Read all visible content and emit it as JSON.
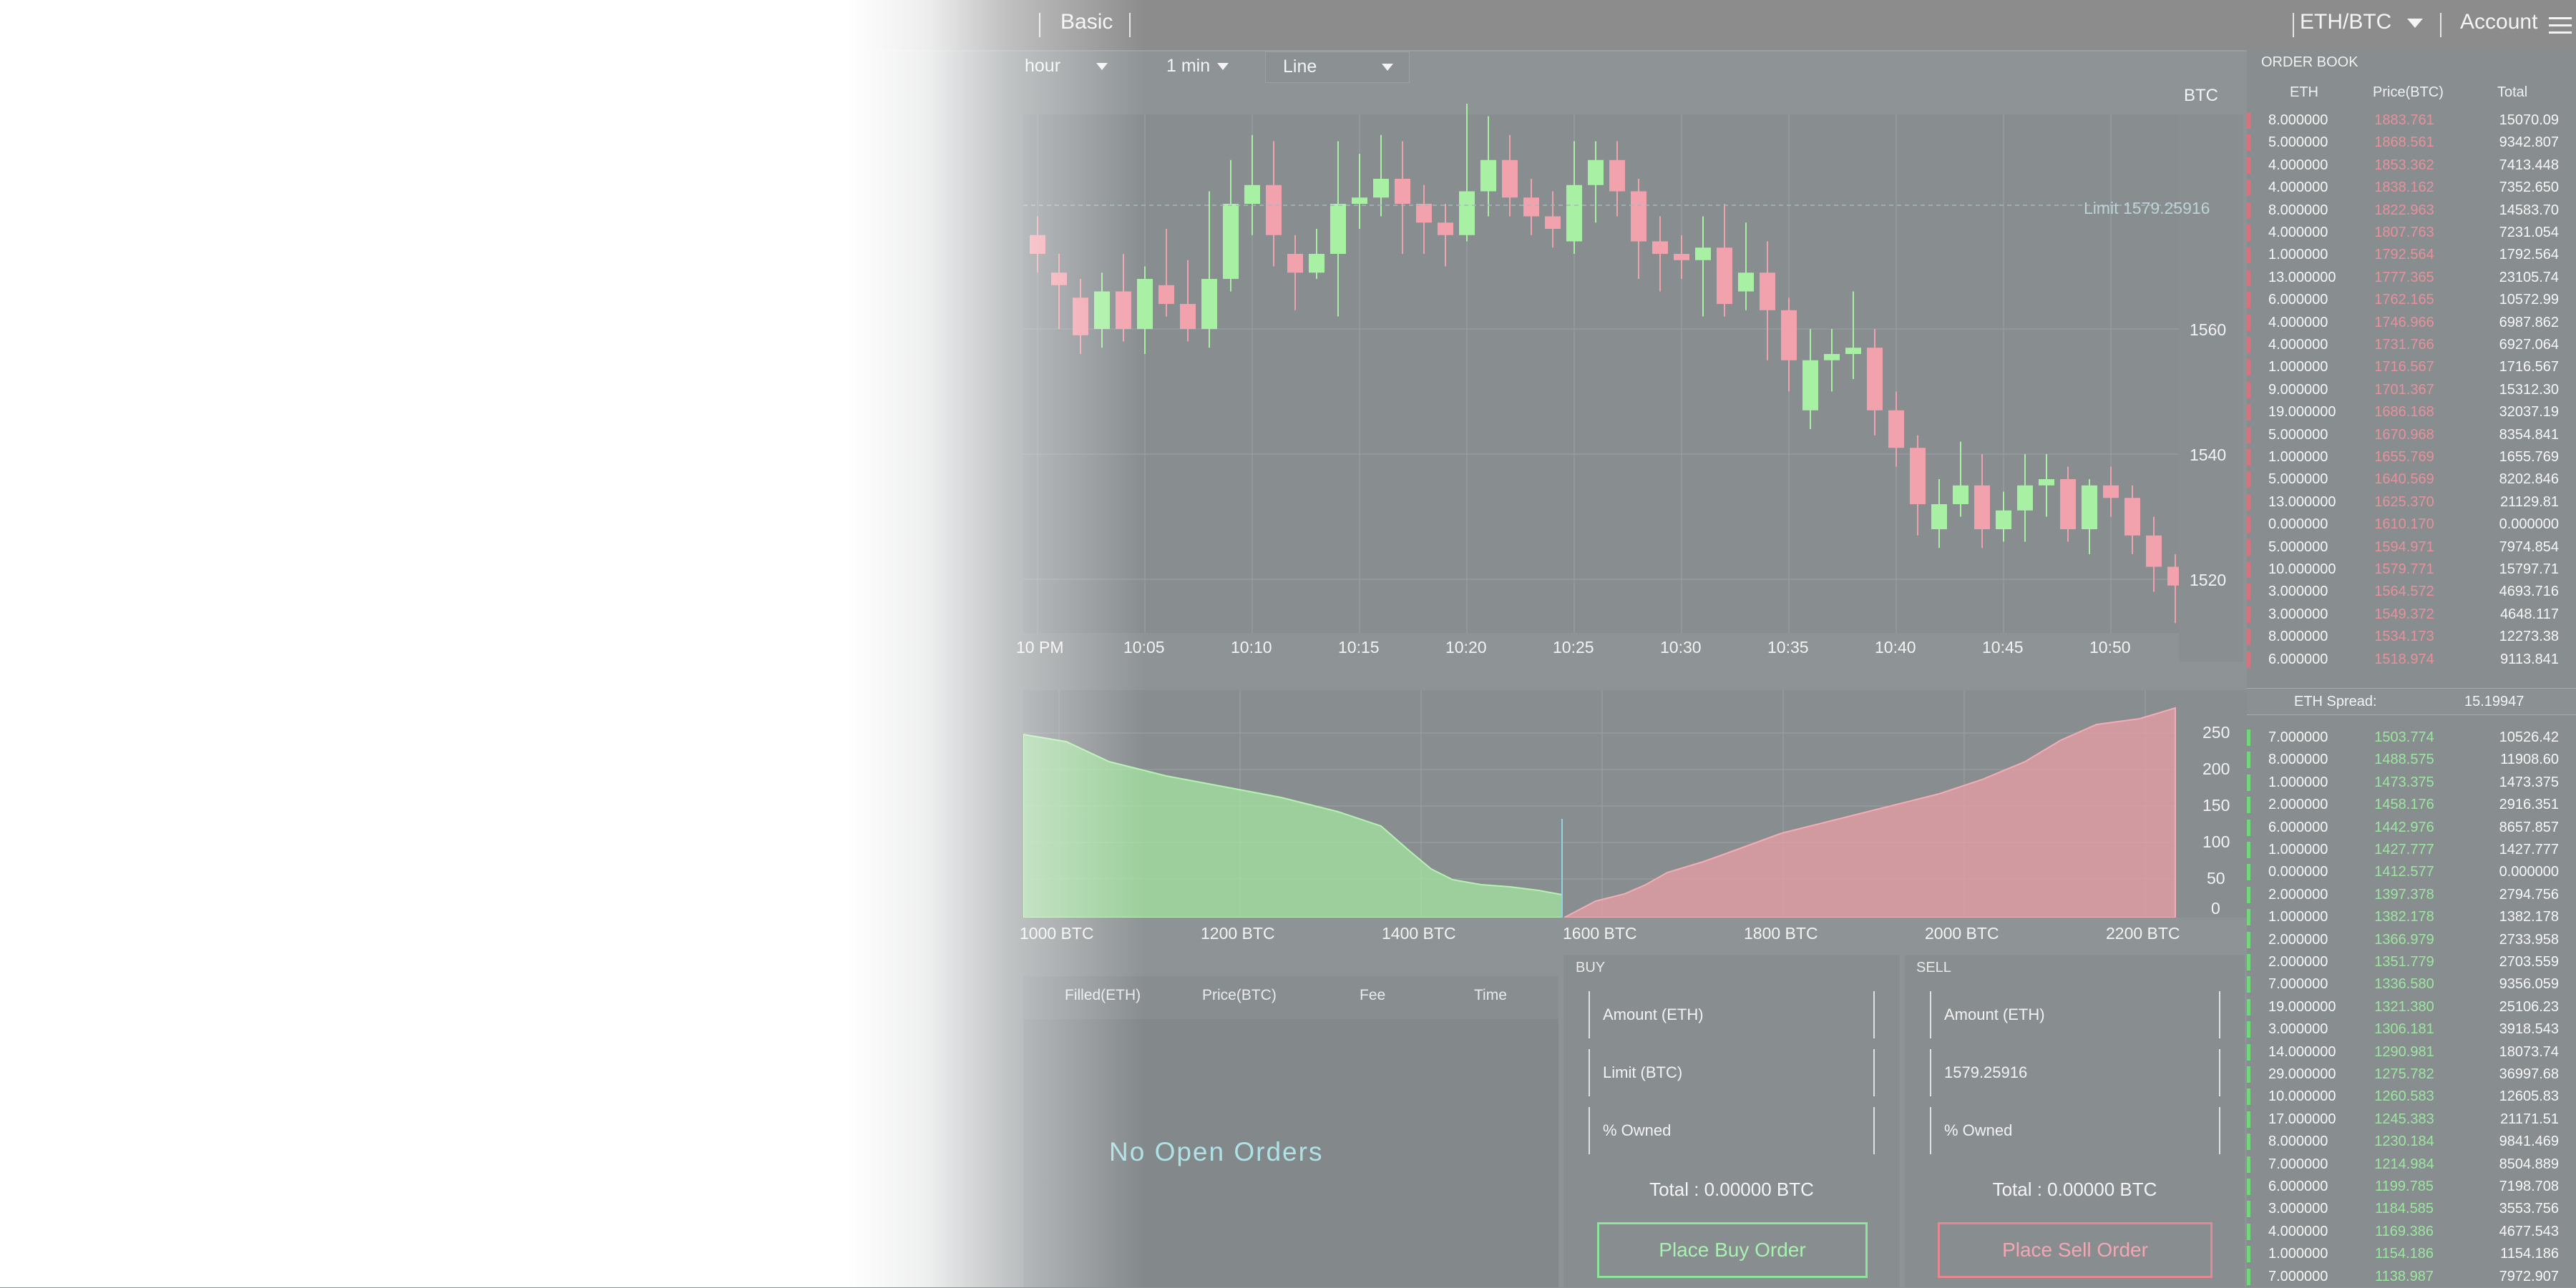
{
  "header": {
    "tab_basic": "Basic",
    "pair": "ETH/BTC",
    "account": "Account"
  },
  "controls": {
    "range": "hour",
    "interval": "1 min",
    "chart_type": "Line"
  },
  "price_chart": {
    "currency": "BTC",
    "limit_label": "Limit 1579.25916",
    "y_ticks": [
      "1560",
      "1540",
      "1520"
    ],
    "x_ticks": [
      "10 PM",
      "10:05",
      "10:10",
      "10:15",
      "10:20",
      "10:25",
      "10:30",
      "10:35",
      "10:40",
      "10:45",
      "10:50"
    ],
    "colors": {
      "up": "#a8f0a4",
      "down": "#f2a2ad"
    }
  },
  "depth_chart": {
    "y_ticks": [
      "250",
      "200",
      "150",
      "100",
      "50",
      "0"
    ],
    "x_ticks": [
      "1000 BTC",
      "1200 BTC",
      "1400 BTC",
      "1600 BTC",
      "1800 BTC",
      "2000 BTC",
      "2200 BTC"
    ],
    "colors": {
      "bid": "#a4e5a0",
      "ask": "#e99ea6"
    }
  },
  "open_orders": {
    "headers": [
      "Filled(ETH)",
      "Price(BTC)",
      "Fee",
      "Time"
    ],
    "empty": "No Open Orders"
  },
  "buy": {
    "title": "BUY",
    "amount_placeholder": "Amount (ETH)",
    "limit_placeholder": "Limit (BTC)",
    "owned_placeholder": "% Owned",
    "total": "Total : 0.00000 BTC",
    "button": "Place Buy Order"
  },
  "sell": {
    "title": "SELL",
    "amount_placeholder": "Amount (ETH)",
    "limit_value": "1579.25916",
    "owned_placeholder": "% Owned",
    "total": "Total : 0.00000 BTC",
    "button": "Place Sell Order"
  },
  "order_book": {
    "title": "ORDER BOOK",
    "headers": [
      "ETH",
      "Price(BTC)",
      "Total"
    ],
    "spread_label": "ETH Spread:",
    "spread_value": "15.19947",
    "asks": [
      [
        "8.000000",
        "1883.761",
        "15070.09"
      ],
      [
        "5.000000",
        "1868.561",
        "9342.807"
      ],
      [
        "4.000000",
        "1853.362",
        "7413.448"
      ],
      [
        "4.000000",
        "1838.162",
        "7352.650"
      ],
      [
        "8.000000",
        "1822.963",
        "14583.70"
      ],
      [
        "4.000000",
        "1807.763",
        "7231.054"
      ],
      [
        "1.000000",
        "1792.564",
        "1792.564"
      ],
      [
        "13.000000",
        "1777.365",
        "23105.74"
      ],
      [
        "6.000000",
        "1762.165",
        "10572.99"
      ],
      [
        "4.000000",
        "1746.966",
        "6987.862"
      ],
      [
        "4.000000",
        "1731.766",
        "6927.064"
      ],
      [
        "1.000000",
        "1716.567",
        "1716.567"
      ],
      [
        "9.000000",
        "1701.367",
        "15312.30"
      ],
      [
        "19.000000",
        "1686.168",
        "32037.19"
      ],
      [
        "5.000000",
        "1670.968",
        "8354.841"
      ],
      [
        "1.000000",
        "1655.769",
        "1655.769"
      ],
      [
        "5.000000",
        "1640.569",
        "8202.846"
      ],
      [
        "13.000000",
        "1625.370",
        "21129.81"
      ],
      [
        "0.000000",
        "1610.170",
        "0.000000"
      ],
      [
        "5.000000",
        "1594.971",
        "7974.854"
      ],
      [
        "10.000000",
        "1579.771",
        "15797.71"
      ],
      [
        "3.000000",
        "1564.572",
        "4693.716"
      ],
      [
        "3.000000",
        "1549.372",
        "4648.117"
      ],
      [
        "8.000000",
        "1534.173",
        "12273.38"
      ],
      [
        "6.000000",
        "1518.974",
        "9113.841"
      ]
    ],
    "bids": [
      [
        "7.000000",
        "1503.774",
        "10526.42"
      ],
      [
        "8.000000",
        "1488.575",
        "11908.60"
      ],
      [
        "1.000000",
        "1473.375",
        "1473.375"
      ],
      [
        "2.000000",
        "1458.176",
        "2916.351"
      ],
      [
        "6.000000",
        "1442.976",
        "8657.857"
      ],
      [
        "1.000000",
        "1427.777",
        "1427.777"
      ],
      [
        "0.000000",
        "1412.577",
        "0.000000"
      ],
      [
        "2.000000",
        "1397.378",
        "2794.756"
      ],
      [
        "1.000000",
        "1382.178",
        "1382.178"
      ],
      [
        "2.000000",
        "1366.979",
        "2733.958"
      ],
      [
        "2.000000",
        "1351.779",
        "2703.559"
      ],
      [
        "7.000000",
        "1336.580",
        "9356.059"
      ],
      [
        "19.000000",
        "1321.380",
        "25106.23"
      ],
      [
        "3.000000",
        "1306.181",
        "3918.543"
      ],
      [
        "14.000000",
        "1290.981",
        "18073.74"
      ],
      [
        "29.000000",
        "1275.782",
        "36997.68"
      ],
      [
        "10.000000",
        "1260.583",
        "12605.83"
      ],
      [
        "17.000000",
        "1245.383",
        "21171.51"
      ],
      [
        "8.000000",
        "1230.184",
        "9841.469"
      ],
      [
        "7.000000",
        "1214.984",
        "8504.889"
      ],
      [
        "6.000000",
        "1199.785",
        "7198.708"
      ],
      [
        "3.000000",
        "1184.585",
        "3553.756"
      ],
      [
        "4.000000",
        "1169.386",
        "4677.543"
      ],
      [
        "1.000000",
        "1154.186",
        "1154.186"
      ],
      [
        "7.000000",
        "1138.987",
        "7972.907"
      ]
    ]
  }
}
